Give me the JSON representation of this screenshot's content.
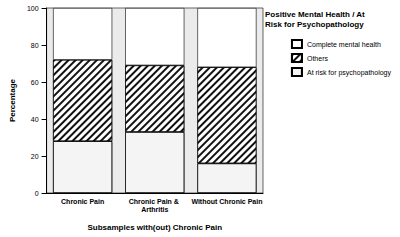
{
  "chart_data": {
    "type": "bar",
    "stacked": true,
    "title": "Positive Mental Health / At Risk for Psychopathology",
    "x_label": "Subsamples with(out) Chronic Pain",
    "y_label": "Percentage",
    "categories": [
      "Chronic Pain",
      "Chronic Pain & Arthritis",
      "Without Chronic Pain"
    ],
    "series": [
      {
        "name": "At risk for psychopathology",
        "color": "#f4f4f4",
        "marker": "dots",
        "values": [
          28,
          33,
          16
        ]
      },
      {
        "name": "Others",
        "color": "#ffffff",
        "marker": "hatch",
        "values": [
          44,
          36,
          52
        ]
      },
      {
        "name": "Complete mental health",
        "color": "#ffffff",
        "marker": "none",
        "values": [
          28,
          31,
          32
        ]
      }
    ],
    "ylim": [
      0,
      100
    ],
    "yticks": [
      0,
      20,
      40,
      60,
      80,
      100
    ],
    "legend": "right",
    "grid": false
  }
}
